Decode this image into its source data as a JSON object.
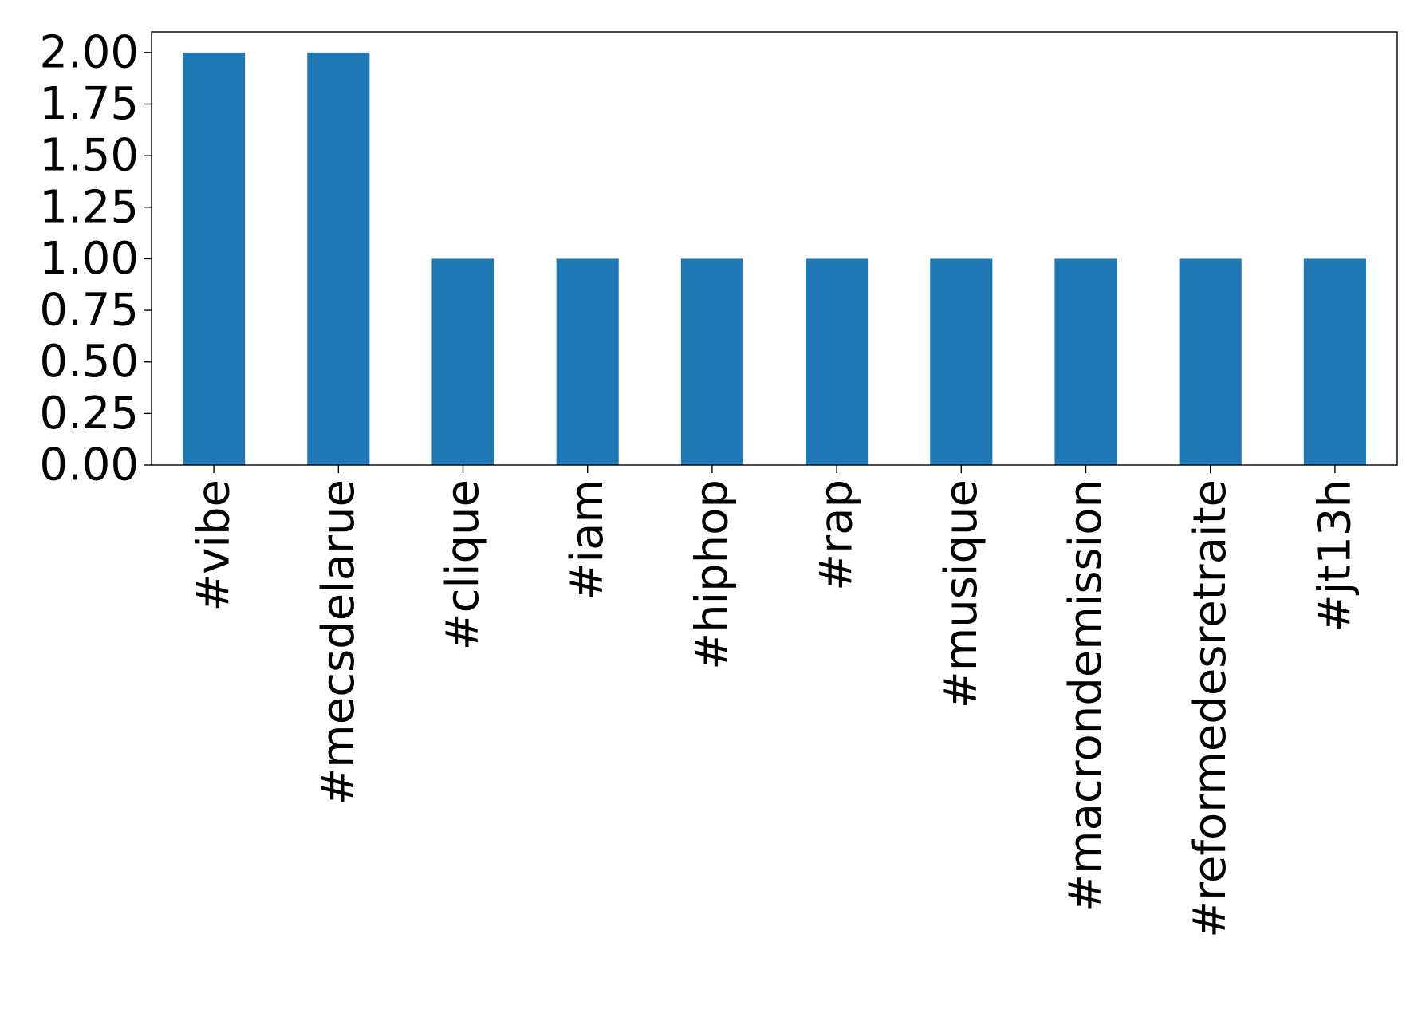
{
  "chart_data": {
    "type": "bar",
    "categories": [
      "#vibe",
      "#mecsdelarue",
      "#clique",
      "#iam",
      "#hiphop",
      "#rap",
      "#musique",
      "#macrondemission",
      "#reformedesretraite",
      "#jt13h"
    ],
    "values": [
      2,
      2,
      1,
      1,
      1,
      1,
      1,
      1,
      1,
      1
    ],
    "title": "",
    "xlabel": "",
    "ylabel": "",
    "ylim": [
      0,
      2.1
    ],
    "yticks": [
      "0.00",
      "0.25",
      "0.50",
      "0.75",
      "1.00",
      "1.25",
      "1.50",
      "1.75",
      "2.00"
    ],
    "grid": false,
    "bar_color": "#1f77b4"
  }
}
